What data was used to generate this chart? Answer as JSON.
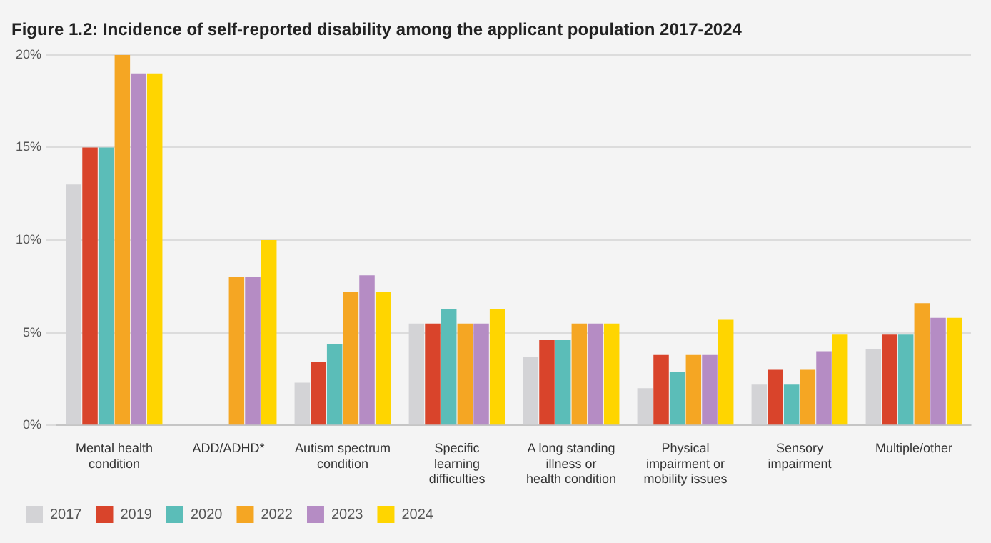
{
  "chart_data": {
    "type": "bar",
    "title": "Figure 1.2: Incidence of self-reported disability among the applicant population 2017-2024",
    "categories": [
      "Mental health condition",
      "ADD/ADHD*",
      "Autism spectrum condition",
      "Specific learning difficulties",
      "A long standing illness or health condition",
      "Physical impairment or mobility issues",
      "Sensory impairment",
      "Multiple/other"
    ],
    "series": [
      {
        "name": "2017",
        "color": "#d3d3d6",
        "values": [
          13,
          null,
          2.3,
          5.5,
          3.7,
          2,
          2.2,
          4.1
        ]
      },
      {
        "name": "2019",
        "color": "#d9442b",
        "values": [
          15,
          null,
          3.4,
          5.5,
          4.6,
          3.8,
          3,
          4.9
        ]
      },
      {
        "name": "2020",
        "color": "#5bbdb8",
        "values": [
          15,
          null,
          4.4,
          6.3,
          4.6,
          2.9,
          2.2,
          4.9
        ]
      },
      {
        "name": "2022",
        "color": "#f5a623",
        "values": [
          20,
          8,
          7.2,
          5.5,
          5.5,
          3.8,
          3,
          6.6
        ]
      },
      {
        "name": "2023",
        "color": "#b58cc4",
        "values": [
          19,
          8,
          8.1,
          5.5,
          5.5,
          3.8,
          4,
          5.8
        ]
      },
      {
        "name": "2024",
        "color": "#ffd500",
        "values": [
          19,
          10,
          7.2,
          6.3,
          5.5,
          5.7,
          4.9,
          5.8
        ]
      }
    ],
    "ylim": [
      0,
      20
    ],
    "yticks": [
      {
        "value": 0,
        "label": "0%"
      },
      {
        "value": 5,
        "label": "5%"
      },
      {
        "value": 10,
        "label": "10%"
      },
      {
        "value": 15,
        "label": "15%"
      },
      {
        "value": 20,
        "label": "20%"
      }
    ],
    "grid": "y",
    "legend": "bottom left"
  }
}
